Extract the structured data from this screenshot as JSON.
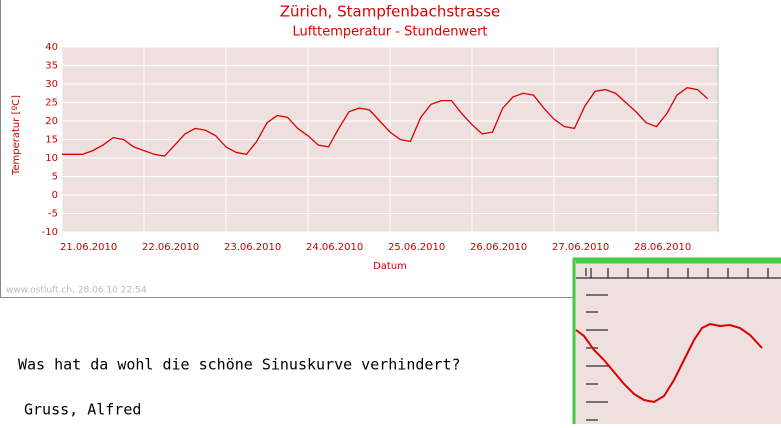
{
  "chart_data": {
    "type": "line",
    "title": "Zürich, Stampfenbachstrasse",
    "subtitle": "Lufttemperatur - Stundenwert",
    "ylabel": "Temperatur [ºC]",
    "xlabel": "Datum",
    "xlim": [
      0,
      8
    ],
    "xticks": [
      {
        "value": 0,
        "label": "21.06.2010"
      },
      {
        "value": 1,
        "label": "22.06.2010"
      },
      {
        "value": 2,
        "label": "23.06.2010"
      },
      {
        "value": 3,
        "label": "24.06.2010"
      },
      {
        "value": 4,
        "label": "25.06.2010"
      },
      {
        "value": 5,
        "label": "26.06.2010"
      },
      {
        "value": 6,
        "label": "27.06.2010"
      },
      {
        "value": 7,
        "label": "28.06.2010"
      }
    ],
    "ylim": [
      -10,
      40
    ],
    "yticks": [
      -10,
      -5,
      0,
      5,
      10,
      15,
      20,
      25,
      30,
      35,
      40
    ],
    "grid": true,
    "x": [
      0,
      0.125,
      0.25,
      0.375,
      0.5,
      0.625,
      0.75,
      0.875,
      1,
      1.125,
      1.25,
      1.375,
      1.5,
      1.625,
      1.75,
      1.875,
      2,
      2.125,
      2.25,
      2.375,
      2.5,
      2.625,
      2.75,
      2.875,
      3,
      3.125,
      3.25,
      3.375,
      3.5,
      3.625,
      3.75,
      3.875,
      4,
      4.125,
      4.25,
      4.375,
      4.5,
      4.625,
      4.75,
      4.875,
      5,
      5.125,
      5.25,
      5.375,
      5.5,
      5.625,
      5.75,
      5.875,
      6,
      6.125,
      6.25,
      6.375,
      6.5,
      6.625,
      6.75,
      6.875,
      7,
      7.125,
      7.25,
      7.375,
      7.5,
      7.625,
      7.75,
      7.875
    ],
    "series": [
      {
        "color": "#dd0000",
        "values": [
          11,
          11,
          11,
          12,
          13.5,
          15.5,
          15,
          13,
          12,
          11,
          10.5,
          13.5,
          16.5,
          18,
          17.5,
          16,
          13,
          11.5,
          11,
          14.5,
          19.5,
          21.5,
          21,
          18,
          16,
          13.5,
          13,
          18,
          22.5,
          23.5,
          23,
          20,
          17,
          15,
          14.5,
          21,
          24.5,
          25.5,
          25.5,
          22,
          19,
          16.5,
          17,
          23.5,
          26.5,
          27.5,
          27,
          23.5,
          20.5,
          18.5,
          18,
          24,
          28,
          28.5,
          27.5,
          25,
          22.5,
          19.5,
          18.5,
          22,
          27,
          29,
          28.5,
          26
        ]
      }
    ]
  },
  "footer": "www.ostluft.ch, 28.06.10 22:54",
  "message": {
    "question": "Was hat da wohl die schöne Sinuskurve verhindert?",
    "signature": "Gruss, Alfred"
  }
}
